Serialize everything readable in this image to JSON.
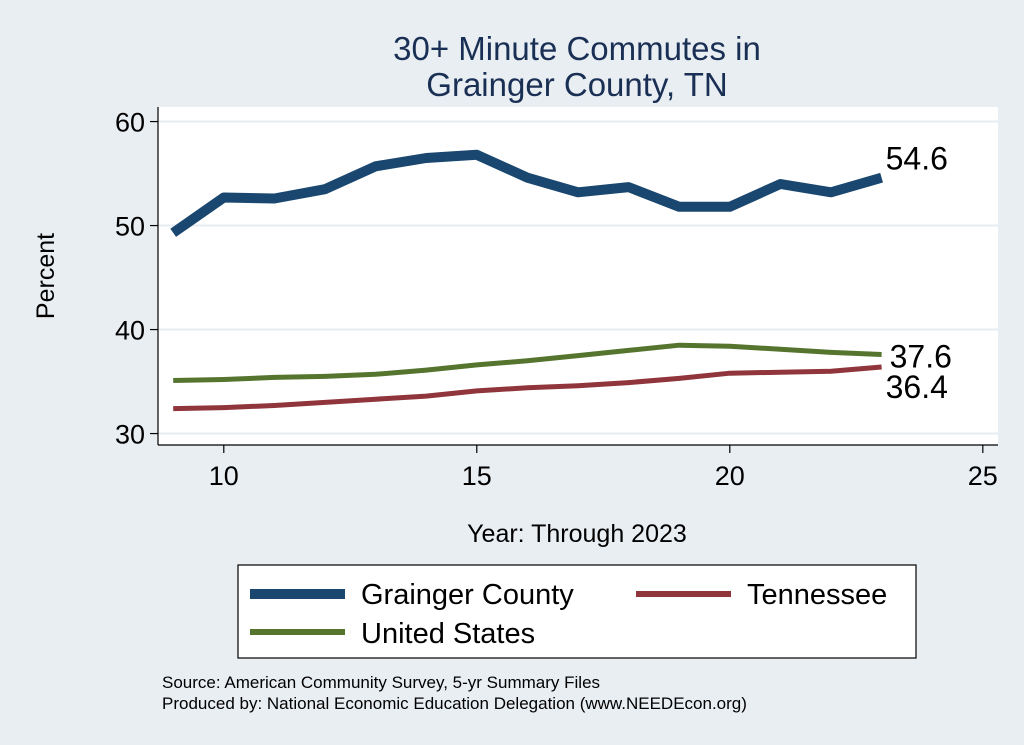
{
  "chart_data": {
    "type": "line",
    "title_lines": [
      "30+ Minute Commutes in",
      "Grainger County, TN"
    ],
    "xlabel": "Year: Through 2023",
    "ylabel": "Percent",
    "xlim": [
      8.7,
      25.3
    ],
    "ylim": [
      28.9,
      61.4
    ],
    "xticks": [
      10,
      15,
      20,
      25
    ],
    "yticks": [
      30,
      40,
      50,
      60
    ],
    "grid": true,
    "legend_position": "bottom",
    "x": [
      9,
      10,
      11,
      12,
      13,
      14,
      15,
      16,
      17,
      18,
      19,
      20,
      21,
      22,
      23
    ],
    "series": [
      {
        "name": "Grainger County",
        "color": "#1a476f",
        "values": [
          49.3,
          52.7,
          52.6,
          53.5,
          55.7,
          56.5,
          56.8,
          54.6,
          53.2,
          53.7,
          51.8,
          51.8,
          54.0,
          53.2,
          54.6
        ],
        "end_label": "54.6"
      },
      {
        "name": "Tennessee",
        "color": "#90353b",
        "values": [
          32.4,
          32.5,
          32.7,
          33.0,
          33.3,
          33.6,
          34.1,
          34.4,
          34.6,
          34.9,
          35.3,
          35.8,
          35.9,
          36.0,
          36.4
        ],
        "end_label": "36.4"
      },
      {
        "name": "United States",
        "color": "#55752f",
        "values": [
          35.1,
          35.2,
          35.4,
          35.5,
          35.7,
          36.1,
          36.6,
          37.0,
          37.5,
          38.0,
          38.5,
          38.4,
          38.1,
          37.8,
          37.6
        ],
        "end_label": "37.6"
      }
    ],
    "source_lines": [
      "Source: American Community Survey, 5-yr Summary Files",
      "Produced by: National Economic Education Delegation (www.NEEDEcon.org)"
    ]
  }
}
